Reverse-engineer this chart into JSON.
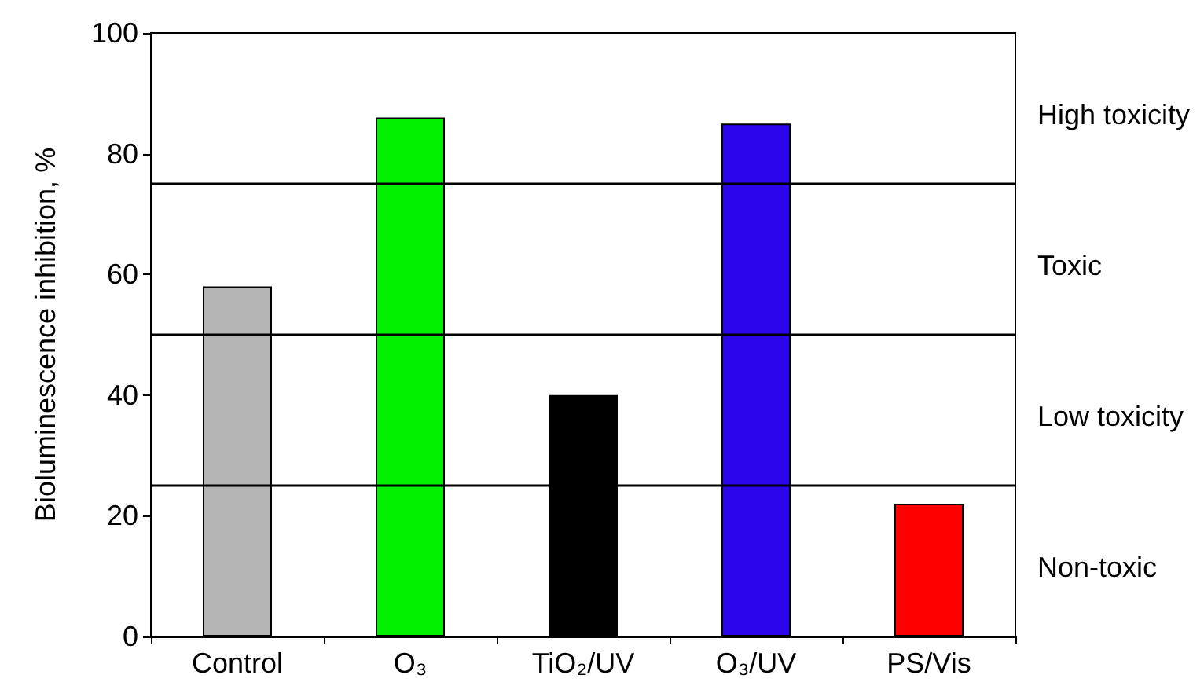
{
  "chart_data": {
    "type": "bar",
    "ylabel": "Bioluminescence inhibition, %",
    "categories": [
      "Control",
      "O₃",
      "TiO₂/UV",
      "O₃/UV",
      "PS/Vis"
    ],
    "values": [
      58,
      86,
      40,
      85,
      22
    ],
    "colors": [
      "#b4b4b4",
      "#00f000",
      "#000000",
      "#2c04ec",
      "#ff0000"
    ],
    "ylim": [
      0,
      100
    ],
    "yticks": [
      0,
      20,
      40,
      60,
      80,
      100
    ],
    "grid": false,
    "ref_lines": [
      {
        "axis": "y",
        "value": 75,
        "label": null
      },
      {
        "axis": "y",
        "value": 50,
        "label": null
      },
      {
        "axis": "y",
        "value": 25,
        "label": null
      }
    ],
    "annotations": [
      "High toxicity",
      "Toxic",
      "Low toxicity",
      "Non-toxic"
    ]
  }
}
